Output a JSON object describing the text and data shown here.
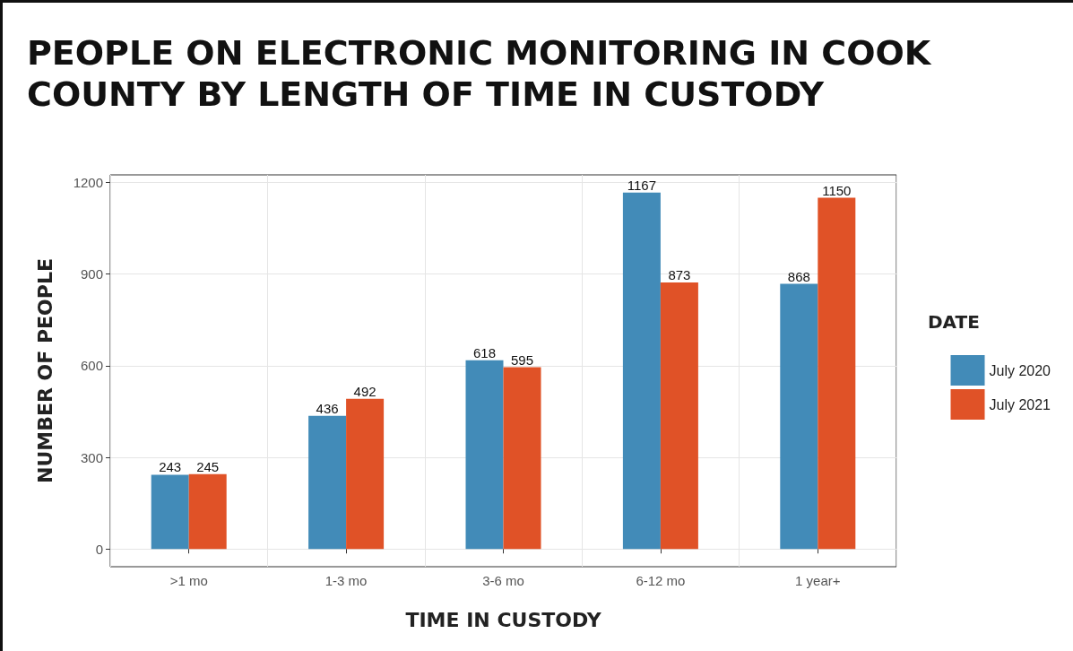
{
  "chart_data": {
    "type": "bar",
    "title": "PEOPLE ON ELECTRONIC MONITORING IN COOK COUNTY BY LENGTH OF TIME IN CUSTODY",
    "xlabel": "TIME IN CUSTODY",
    "ylabel": "NUMBER OF PEOPLE",
    "legend_title": "DATE",
    "categories": [
      ">1 mo",
      "1-3 mo",
      "3-6 mo",
      "6-12 mo",
      "1 year+"
    ],
    "series": [
      {
        "name": "July 2020",
        "color": "#428bb8",
        "values": [
          243,
          436,
          618,
          1167,
          868
        ]
      },
      {
        "name": "July 2021",
        "color": "#e05227",
        "values": [
          245,
          492,
          595,
          873,
          1150
        ]
      }
    ],
    "ylim": [
      -58,
      1225
    ],
    "yticks": [
      0,
      300,
      600,
      900,
      1200
    ],
    "grid": true,
    "legend": "right",
    "data_labels": true
  }
}
